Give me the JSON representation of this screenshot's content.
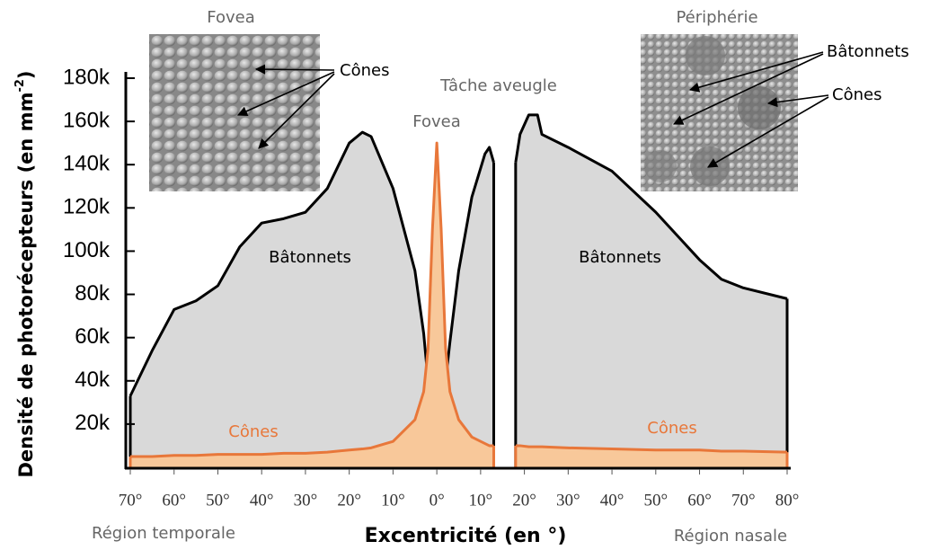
{
  "chart_data": {
    "type": "area",
    "x_label": "Excentricité (en °)",
    "y_label": {
      "text": "Densité de photorécepteurs (en mm",
      "superscript": "-2",
      "close": ")"
    },
    "x": [
      -70,
      -65,
      -60,
      -55,
      -50,
      -45,
      -40,
      -35,
      -30,
      -25,
      -20,
      -17,
      -15,
      -10,
      -5,
      -3,
      -2,
      -1,
      0,
      1,
      2,
      3,
      5,
      8,
      11,
      12,
      13,
      15,
      18,
      19,
      21,
      23,
      24,
      30,
      40,
      50,
      60,
      65,
      70,
      80
    ],
    "series": [
      {
        "name": "Bâtonnets",
        "color": "#d9d9d9",
        "line_color": "#000000",
        "values": [
          33000,
          54000,
          73000,
          77000,
          84000,
          102000,
          113000,
          115000,
          118000,
          129000,
          150000,
          155000,
          153000,
          129000,
          91000,
          62000,
          40000,
          15000,
          0,
          15000,
          40000,
          58000,
          91000,
          125000,
          145000,
          148000,
          141000,
          null,
          141000,
          154000,
          163000,
          163000,
          154000,
          148000,
          137000,
          118000,
          96000,
          87000,
          83000,
          78000
        ]
      },
      {
        "name": "Cônes",
        "color": "#f8c89a",
        "line_color": "#e8773a",
        "values": [
          5000,
          5000,
          5500,
          5500,
          6000,
          6000,
          6000,
          6500,
          6500,
          7000,
          8000,
          8500,
          9000,
          12000,
          22000,
          35000,
          55000,
          110000,
          150000,
          110000,
          55000,
          35000,
          22000,
          14000,
          11000,
          10000,
          10000,
          null,
          10000,
          10000,
          9500,
          9500,
          9500,
          9000,
          8500,
          8000,
          8000,
          7500,
          7500,
          7000
        ]
      }
    ],
    "xlim": [
      -70,
      80
    ],
    "xticks": [
      {
        "value": -70,
        "label": "70°"
      },
      {
        "value": -60,
        "label": "60°"
      },
      {
        "value": -50,
        "label": "50°"
      },
      {
        "value": -40,
        "label": "40°"
      },
      {
        "value": -30,
        "label": "30°"
      },
      {
        "value": -20,
        "label": "20°"
      },
      {
        "value": -10,
        "label": "10°"
      },
      {
        "value": 0,
        "label": "0°"
      },
      {
        "value": 10,
        "label": "10°"
      },
      {
        "value": 20,
        "label": "20°"
      },
      {
        "value": 30,
        "label": "30°"
      },
      {
        "value": 40,
        "label": "40°"
      },
      {
        "value": 50,
        "label": "50°"
      },
      {
        "value": 60,
        "label": "60°"
      },
      {
        "value": 70,
        "label": "70°"
      },
      {
        "value": 80,
        "label": "80°"
      }
    ],
    "ylim": [
      0,
      180000
    ],
    "yticks": [
      {
        "value": 20000,
        "label": "20k"
      },
      {
        "value": 40000,
        "label": "40k"
      },
      {
        "value": 60000,
        "label": "60k"
      },
      {
        "value": 80000,
        "label": "80k"
      },
      {
        "value": 100000,
        "label": "100k"
      },
      {
        "value": 120000,
        "label": "120k"
      },
      {
        "value": 140000,
        "label": "140k"
      },
      {
        "value": 160000,
        "label": "160k"
      },
      {
        "value": 180000,
        "label": "180k"
      }
    ],
    "annotations": {
      "fovea_inset": "Fovea",
      "periphery_inset": "Périphérie",
      "fovea_cones": "Cônes",
      "periphery_rods": "Bâtonnets",
      "periphery_cones": "Cônes",
      "blind_spot": "Tâche aveugle",
      "fovea_peak": "Fovea",
      "rods_left": "Bâtonnets",
      "rods_right": "Bâtonnets",
      "cones_left": "Cônes",
      "cones_right": "Cônes",
      "temporal": "Région temporale",
      "nasal": "Région nasale"
    }
  }
}
